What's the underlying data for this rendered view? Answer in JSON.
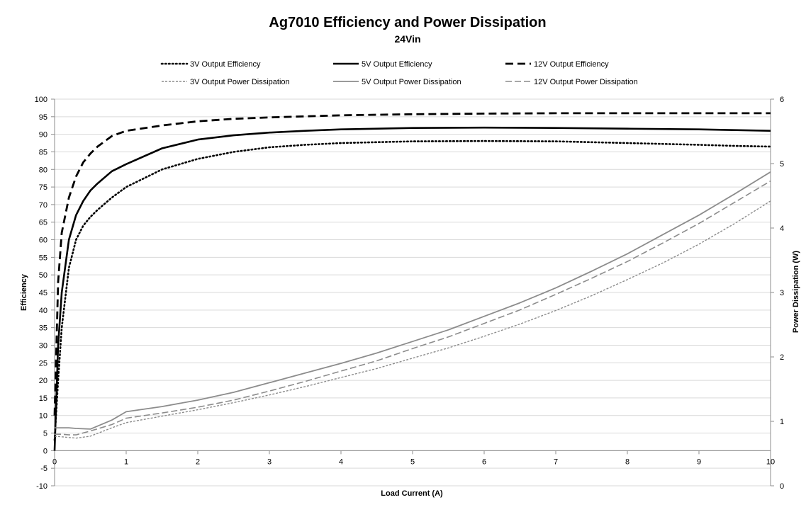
{
  "chart_data": {
    "type": "line",
    "title": "Ag7010 Efficiency and Power Dissipation",
    "subtitle": "24Vin",
    "xlabel": "Load Current (A)",
    "ylabel": "Efficiency",
    "y2label": "Power Dissipation (W)",
    "xlim": [
      0,
      10
    ],
    "ylim": [
      -10,
      100
    ],
    "y2lim": [
      0,
      6
    ],
    "x_ticks": [
      "0",
      "1",
      "2",
      "3",
      "4",
      "5",
      "6",
      "7",
      "8",
      "9",
      "10"
    ],
    "y_ticks": [
      "-10",
      "-5",
      "0",
      "5",
      "10",
      "15",
      "20",
      "25",
      "30",
      "35",
      "40",
      "45",
      "50",
      "55",
      "60",
      "65",
      "70",
      "75",
      "80",
      "85",
      "90",
      "95",
      "100"
    ],
    "y2_ticks": [
      "0",
      "1",
      "2",
      "3",
      "4",
      "5",
      "6"
    ],
    "grid": true,
    "legend_placement": "top",
    "series": [
      {
        "name": "3V Output Efficiency",
        "axis": "left",
        "color": "#000000",
        "style": "dotted",
        "x": [
          0,
          0.05,
          0.1,
          0.2,
          0.3,
          0.4,
          0.5,
          0.6,
          0.8,
          1.0,
          1.5,
          2,
          2.5,
          3,
          3.5,
          4,
          5,
          6,
          7,
          8,
          9,
          9.5,
          10
        ],
        "y": [
          3,
          20,
          35,
          52,
          60,
          64,
          66.5,
          68.5,
          72,
          75,
          80,
          83,
          85,
          86.3,
          87,
          87.5,
          88,
          88.1,
          88,
          87.5,
          87,
          86.7,
          86.5
        ]
      },
      {
        "name": "5V Output Efficiency",
        "axis": "left",
        "color": "#000000",
        "style": "solid",
        "x": [
          0,
          0.05,
          0.1,
          0.2,
          0.3,
          0.4,
          0.5,
          0.6,
          0.8,
          1.0,
          1.5,
          2,
          2.5,
          3,
          3.5,
          4,
          5,
          6,
          7,
          8,
          9,
          9.5,
          10
        ],
        "y": [
          0,
          30,
          45,
          60,
          67,
          71,
          74,
          76,
          79.5,
          81.5,
          86,
          88.5,
          89.7,
          90.5,
          91,
          91.4,
          91.8,
          91.9,
          91.8,
          91.6,
          91.4,
          91.2,
          91
        ]
      },
      {
        "name": "12V Output Efficiency",
        "axis": "left",
        "color": "#000000",
        "style": "dashed",
        "x": [
          0,
          0.05,
          0.1,
          0.2,
          0.3,
          0.4,
          0.5,
          0.6,
          0.8,
          1.0,
          1.5,
          2,
          2.5,
          3,
          3.5,
          4,
          5,
          6,
          7,
          8,
          9,
          10
        ],
        "y": [
          10,
          48,
          62,
          72,
          78,
          82,
          84.5,
          86.5,
          89.5,
          91,
          92.5,
          93.7,
          94.4,
          94.8,
          95.1,
          95.4,
          95.7,
          95.9,
          96,
          96,
          96,
          96
        ]
      },
      {
        "name": "3V Output Power Dissipation",
        "axis": "right",
        "color": "#8c8c8c",
        "style": "dashed-fine",
        "x": [
          0,
          0.1,
          0.2,
          0.3,
          0.5,
          0.8,
          1,
          1.5,
          2,
          2.5,
          3,
          3.5,
          4,
          4.5,
          5,
          5.5,
          6,
          6.5,
          7,
          7.5,
          8,
          8.5,
          9,
          9.5,
          10
        ],
        "y": [
          0.77,
          0.76,
          0.75,
          0.74,
          0.77,
          0.9,
          0.98,
          1.08,
          1.18,
          1.29,
          1.41,
          1.54,
          1.68,
          1.82,
          1.98,
          2.14,
          2.32,
          2.51,
          2.72,
          2.95,
          3.2,
          3.46,
          3.75,
          4.07,
          4.42
        ]
      },
      {
        "name": "5V Output Power Dissipation",
        "axis": "right",
        "color": "#8c8c8c",
        "style": "solid",
        "x": [
          0,
          0.1,
          0.2,
          0.3,
          0.5,
          0.8,
          1,
          1.5,
          2,
          2.5,
          3,
          3.5,
          4,
          4.5,
          5,
          5.5,
          6,
          6.5,
          7,
          7.5,
          8,
          8.5,
          9,
          9.5,
          10
        ],
        "y": [
          0.9,
          0.9,
          0.9,
          0.89,
          0.88,
          1.02,
          1.15,
          1.23,
          1.33,
          1.45,
          1.6,
          1.75,
          1.9,
          2.06,
          2.24,
          2.42,
          2.63,
          2.84,
          3.07,
          3.33,
          3.6,
          3.9,
          4.2,
          4.53,
          4.87
        ]
      },
      {
        "name": "12V Output Power Dissipation",
        "axis": "right",
        "color": "#8c8c8c",
        "style": "longdash",
        "x": [
          0,
          0.1,
          0.2,
          0.3,
          0.5,
          0.8,
          1,
          1.5,
          2,
          2.5,
          3,
          3.5,
          4,
          4.5,
          5,
          5.5,
          6,
          6.5,
          7,
          7.5,
          8,
          8.5,
          9,
          9.5,
          10
        ],
        "y": [
          0.8,
          0.8,
          0.79,
          0.79,
          0.85,
          0.95,
          1.05,
          1.13,
          1.22,
          1.33,
          1.47,
          1.62,
          1.78,
          1.94,
          2.13,
          2.31,
          2.52,
          2.73,
          2.97,
          3.22,
          3.48,
          3.77,
          4.07,
          4.4,
          4.73
        ]
      }
    ]
  }
}
